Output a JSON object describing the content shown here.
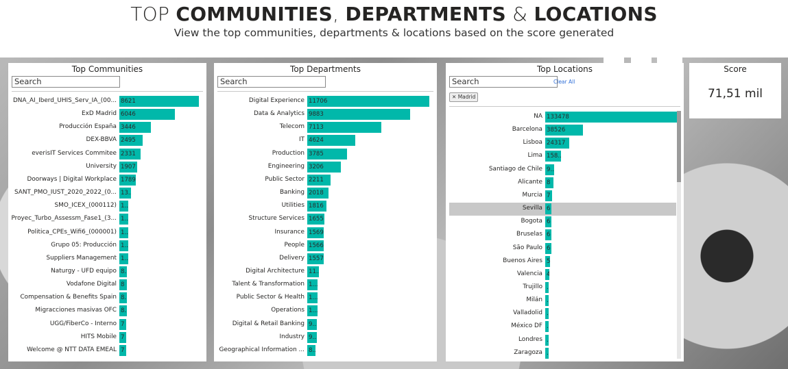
{
  "header": {
    "title_prefix": "TOP ",
    "title_word1": "COMMUNITIES",
    "title_sep1": ", ",
    "title_word2": "DEPARTMENTS",
    "title_sep2": " & ",
    "title_word3": "LOCATIONS",
    "subtitle": "View the top communities, departments & locations based on the score generated"
  },
  "communities": {
    "title": "Top Communities",
    "search_placeholder": "Search",
    "bar_color": "#01B8AA",
    "items": [
      {
        "label": "DNA_AI_Iberd_UHIS_Serv_IA_(00...",
        "value": 8621,
        "shown": "8621"
      },
      {
        "label": "ExD Madrid",
        "value": 6046,
        "shown": "6046"
      },
      {
        "label": "Producción España",
        "value": 3446,
        "shown": "3446"
      },
      {
        "label": "DEX-BBVA",
        "value": 2495,
        "shown": "2495"
      },
      {
        "label": "everisIT Services Commitee",
        "value": 2331,
        "shown": "2331"
      },
      {
        "label": "University",
        "value": 1907,
        "shown": "1907"
      },
      {
        "label": "Doorways | Digital Workplace",
        "value": 1789,
        "shown": "1789"
      },
      {
        "label": "SANT_PMO_IUST_2020_2022_(0...",
        "value": 1300,
        "shown": "13..."
      },
      {
        "label": "SMO_ICEX_(000112)",
        "value": 1000,
        "shown": "1..."
      },
      {
        "label": "Proyec_Turbo_Assessm_Fase1_(3...",
        "value": 1000,
        "shown": "1..."
      },
      {
        "label": "Politica_CPEs_Wifi6_(000001)",
        "value": 1000,
        "shown": "1..."
      },
      {
        "label": "Grupo 05: Producción",
        "value": 1000,
        "shown": "1..."
      },
      {
        "label": "Suppliers Management",
        "value": 1000,
        "shown": "1..."
      },
      {
        "label": "Naturgy - UFD equipo",
        "value": 800,
        "shown": "8..."
      },
      {
        "label": "Vodafone Digital",
        "value": 800,
        "shown": "8"
      },
      {
        "label": "Compensation & Benefits Spain",
        "value": 800,
        "shown": "8..."
      },
      {
        "label": "Migracciones masivas OFC",
        "value": 800,
        "shown": "8..."
      },
      {
        "label": "UGG/FiberCo - Interno",
        "value": 700,
        "shown": "7"
      },
      {
        "label": "HITS Mobile",
        "value": 700,
        "shown": "7"
      },
      {
        "label": "Welcome @ NTT DATA EMEAL",
        "value": 700,
        "shown": "7"
      }
    ]
  },
  "departments": {
    "title": "Top Departments",
    "search_placeholder": "Search",
    "items": [
      {
        "label": "Digital Experience",
        "value": 11706,
        "shown": "11706"
      },
      {
        "label": "Data & Analytics",
        "value": 9883,
        "shown": "9883"
      },
      {
        "label": "Telecom",
        "value": 7113,
        "shown": "7113"
      },
      {
        "label": "IT",
        "value": 4624,
        "shown": "4624"
      },
      {
        "label": "Production",
        "value": 3785,
        "shown": "3785"
      },
      {
        "label": "Engineering",
        "value": 3206,
        "shown": "3206"
      },
      {
        "label": "Public Sector",
        "value": 2211,
        "shown": "2211"
      },
      {
        "label": "Banking",
        "value": 2018,
        "shown": "2018"
      },
      {
        "label": "Utilities",
        "value": 1816,
        "shown": "1816"
      },
      {
        "label": "Structure Services",
        "value": 1655,
        "shown": "1655"
      },
      {
        "label": "Insurance",
        "value": 1569,
        "shown": "1569"
      },
      {
        "label": "People",
        "value": 1566,
        "shown": "1566"
      },
      {
        "label": "Delivery",
        "value": 1557,
        "shown": "1557"
      },
      {
        "label": "Digital Architecture",
        "value": 1100,
        "shown": "11..."
      },
      {
        "label": "Talent & Transformation",
        "value": 1000,
        "shown": "1..."
      },
      {
        "label": "Public Sector & Health",
        "value": 1000,
        "shown": "1..."
      },
      {
        "label": "Operations",
        "value": 1000,
        "shown": "1..."
      },
      {
        "label": "Digital & Retail Banking",
        "value": 900,
        "shown": "9..."
      },
      {
        "label": "Industry",
        "value": 900,
        "shown": "9..."
      },
      {
        "label": "Geographical Information ...",
        "value": 800,
        "shown": "8..."
      }
    ]
  },
  "locations": {
    "title": "Top Locations",
    "search_placeholder": "Search",
    "clear_all": "Clear All",
    "filter_chip": "Madrid",
    "chip_close": "✕",
    "selected_label": "Sevilla",
    "items": [
      {
        "label": "NA",
        "value": 133478,
        "shown": "133478"
      },
      {
        "label": "Barcelona",
        "value": 38526,
        "shown": "38526"
      },
      {
        "label": "Lisboa",
        "value": 24317,
        "shown": "24317"
      },
      {
        "label": "Lima",
        "value": 15800,
        "shown": "158..."
      },
      {
        "label": "Santiago de Chile",
        "value": 9000,
        "shown": "9..."
      },
      {
        "label": "Alicante",
        "value": 8000,
        "shown": "8"
      },
      {
        "label": "Murcia",
        "value": 7000,
        "shown": "7"
      },
      {
        "label": "Sevilla",
        "value": 6000,
        "shown": "6"
      },
      {
        "label": "Bogota",
        "value": 6000,
        "shown": "6"
      },
      {
        "label": "Bruselas",
        "value": 6000,
        "shown": "6"
      },
      {
        "label": "São Paulo",
        "value": 6000,
        "shown": "6"
      },
      {
        "label": "Buenos Aires",
        "value": 5000,
        "shown": "5"
      },
      {
        "label": "Valencia",
        "value": 4000,
        "shown": "4"
      },
      {
        "label": "Trujillo",
        "value": 3500,
        "shown": "..."
      },
      {
        "label": "Milán",
        "value": 3000,
        "shown": "..."
      },
      {
        "label": "Valladolid",
        "value": 3000,
        "shown": "..."
      },
      {
        "label": "México DF",
        "value": 3000,
        "shown": "..."
      },
      {
        "label": "Londres",
        "value": 2500,
        "shown": "..."
      },
      {
        "label": "Zaragoza",
        "value": 2500,
        "shown": "..."
      }
    ]
  },
  "score": {
    "title": "Score",
    "value": "71,51 mil"
  }
}
